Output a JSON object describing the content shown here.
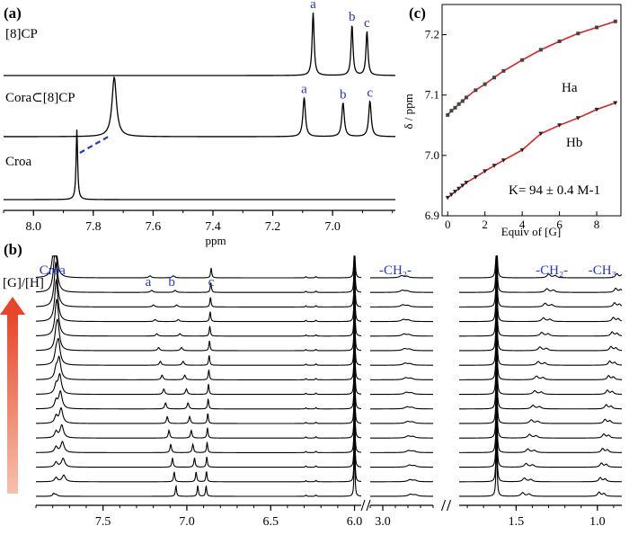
{
  "chart_data": [
    {
      "panel": "a",
      "panel_label": "(a)",
      "type": "line",
      "title": "",
      "xlabel": "ppm",
      "xlim": [
        8.1,
        6.79
      ],
      "x_ticks": [
        "8.0",
        "7.8",
        "7.6",
        "7.4",
        "7.2",
        "7.0"
      ],
      "x_tick_values": [
        8.0,
        7.8,
        7.6,
        7.4,
        7.2,
        7.0
      ],
      "series": [
        {
          "name": "[8]CP",
          "peaks": [
            {
              "ppm": 7.065,
              "height": 1.0,
              "width": 0.004,
              "label": "a"
            },
            {
              "ppm": 6.935,
              "height": 0.8,
              "width": 0.004,
              "label": "b"
            },
            {
              "ppm": 6.885,
              "height": 0.7,
              "width": 0.004,
              "label": "c"
            }
          ]
        },
        {
          "name": "Cora⊂[8]CP",
          "peaks": [
            {
              "ppm": 7.73,
              "height": 1.0,
              "width": 0.009,
              "label": ""
            },
            {
              "ppm": 7.095,
              "height": 0.66,
              "width": 0.005,
              "label": "a"
            },
            {
              "ppm": 6.965,
              "height": 0.57,
              "width": 0.005,
              "label": "b"
            },
            {
              "ppm": 6.875,
              "height": 0.6,
              "width": 0.005,
              "label": "c"
            }
          ]
        },
        {
          "name": "Croa",
          "peaks": [
            {
              "ppm": 7.855,
              "height": 1.0,
              "width": 0.003,
              "label": ""
            }
          ]
        }
      ],
      "annotation": "dashed arrow from Croa peak (7.855 ppm) to complexed corannulene peak (7.73 ppm)"
    },
    {
      "panel": "b",
      "panel_label": "(b)",
      "type": "line",
      "title": "",
      "xlabel": "",
      "y_indicator_label": "[G]/[H]",
      "x_ticks": [
        "7.5",
        "7.0",
        "6.5",
        "6.0",
        "3.0",
        "1.5",
        "1.0"
      ],
      "x_tick_values": [
        7.5,
        7.0,
        6.5,
        6.0,
        3.0,
        1.5,
        1.0
      ],
      "segments": [
        {
          "ppm_from": 7.9,
          "ppm_to": 5.96
        },
        {
          "ppm_from": 3.1,
          "ppm_to": 2.6
        },
        {
          "ppm_from": 1.85,
          "ppm_to": 0.85
        }
      ],
      "peak_labels": [
        "Croa",
        "a",
        "b",
        "c",
        "-CH₂-",
        "-CH₂-",
        "-CH₃"
      ],
      "n_spectra": 16,
      "tracked_peaks": [
        {
          "name": "Croa",
          "start": 7.73,
          "end": 7.79
        },
        {
          "name": "a",
          "start": 7.065,
          "end": 7.22
        },
        {
          "name": "b",
          "start": 6.935,
          "end": 7.08
        },
        {
          "name": "c",
          "start": 6.885,
          "end": 6.855
        }
      ]
    },
    {
      "panel": "c",
      "panel_label": "(c)",
      "type": "scatter",
      "title": "",
      "xlabel": "Equiv of [G]",
      "ylabel": "δ / ppm",
      "xlim": [
        -0.3,
        9.3
      ],
      "ylim": [
        6.9,
        7.25
      ],
      "x_ticks": [
        "0",
        "2",
        "4",
        "6",
        "8"
      ],
      "x_tick_values": [
        0,
        2,
        4,
        6,
        8
      ],
      "y_ticks": [
        "6.9",
        "7.0",
        "7.1",
        "7.2"
      ],
      "y_tick_values": [
        6.9,
        7.0,
        7.1,
        7.2
      ],
      "annotation": "K= 94 ± 0.4 M-1",
      "series": [
        {
          "name": "Ha",
          "marker": "square",
          "fit_color": "#e02020",
          "x": [
            0,
            0.2,
            0.4,
            0.6,
            0.8,
            1.0,
            1.5,
            2.0,
            2.5,
            3.0,
            4.0,
            5.0,
            6.0,
            7.0,
            8.0,
            9.0
          ],
          "y": [
            7.067,
            7.074,
            7.079,
            7.085,
            7.09,
            7.096,
            7.108,
            7.118,
            7.129,
            7.14,
            7.158,
            7.175,
            7.189,
            7.202,
            7.212,
            7.222
          ]
        },
        {
          "name": "Hb",
          "marker": "triangle-down",
          "fit_color": "#e02020",
          "x": [
            0,
            0.2,
            0.4,
            0.6,
            0.8,
            1.0,
            1.5,
            2.0,
            2.5,
            3.0,
            4.0,
            5.0,
            6.0,
            7.0,
            8.0,
            9.0
          ],
          "y": [
            6.93,
            6.935,
            6.94,
            6.945,
            6.95,
            6.955,
            6.964,
            6.974,
            6.983,
            6.992,
            7.009,
            7.036,
            7.05,
            7.062,
            7.076,
            7.087
          ]
        }
      ]
    }
  ]
}
